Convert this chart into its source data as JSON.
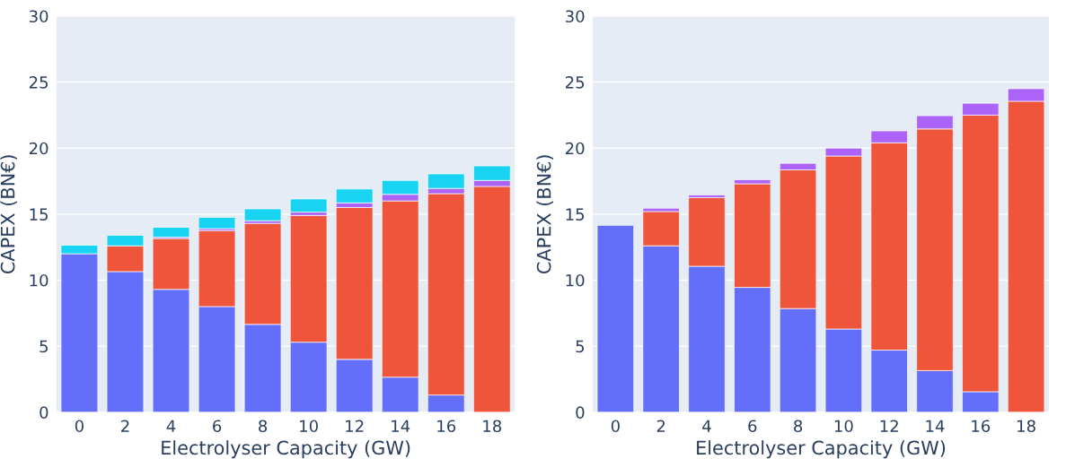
{
  "chart_data": [
    {
      "type": "bar",
      "stacked": true,
      "xlabel": "Electrolyser Capacity (GW)",
      "ylabel": "CAPEX (BN€)",
      "categories": [
        "0",
        "2",
        "4",
        "6",
        "8",
        "10",
        "12",
        "14",
        "16",
        "18"
      ],
      "ylim": [
        0,
        30
      ],
      "yticks": [
        0,
        5,
        10,
        15,
        20,
        25,
        30
      ],
      "grid": "y",
      "series": [
        {
          "color": "#636efa",
          "values": [
            12.0,
            10.65,
            9.3,
            8.0,
            6.65,
            5.3,
            4.0,
            2.65,
            1.3,
            0
          ]
        },
        {
          "color": "#ef553b",
          "values": [
            0,
            1.95,
            3.85,
            5.75,
            7.65,
            9.6,
            11.5,
            13.35,
            15.25,
            17.1
          ]
        },
        {
          "color": "#ab63fa",
          "values": [
            0,
            0,
            0.1,
            0.15,
            0.2,
            0.25,
            0.35,
            0.5,
            0.4,
            0.45
          ]
        },
        {
          "color": "#19d3f3",
          "values": [
            0.65,
            0.8,
            0.75,
            0.85,
            0.9,
            1.0,
            1.05,
            1.05,
            1.1,
            1.1
          ]
        }
      ]
    },
    {
      "type": "bar",
      "stacked": true,
      "xlabel": "Electrolyser Capacity (GW)",
      "ylabel": "CAPEX (BN€)",
      "categories": [
        "0",
        "2",
        "4",
        "6",
        "8",
        "10",
        "12",
        "14",
        "16",
        "18"
      ],
      "ylim": [
        0,
        30
      ],
      "yticks": [
        0,
        5,
        10,
        15,
        20,
        25,
        30
      ],
      "grid": "y",
      "series": [
        {
          "color": "#636efa",
          "values": [
            14.15,
            12.6,
            11.05,
            9.45,
            7.85,
            6.3,
            4.7,
            3.15,
            1.55,
            0
          ]
        },
        {
          "color": "#ef553b",
          "values": [
            0,
            2.6,
            5.2,
            7.85,
            10.5,
            13.1,
            15.7,
            18.3,
            20.95,
            23.55
          ]
        },
        {
          "color": "#ab63fa",
          "values": [
            0,
            0.25,
            0.2,
            0.3,
            0.5,
            0.6,
            0.9,
            1.0,
            0.9,
            0.95
          ]
        }
      ]
    }
  ]
}
